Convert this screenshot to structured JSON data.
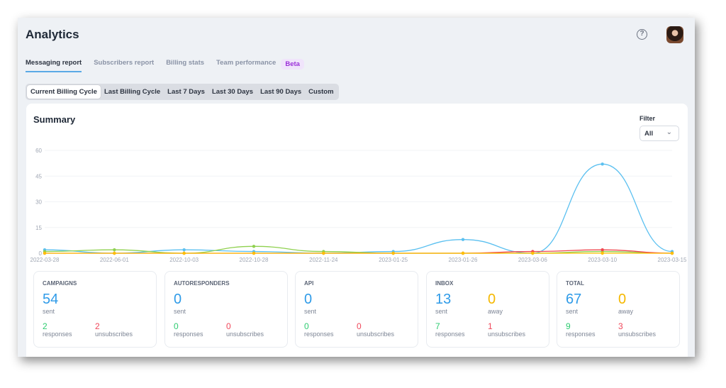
{
  "header": {
    "title": "Analytics",
    "help_icon": "question-circle-icon",
    "avatar": "user-avatar"
  },
  "tabs": [
    {
      "label": "Messaging report",
      "active": true
    },
    {
      "label": "Subscribers report"
    },
    {
      "label": "Billing stats"
    },
    {
      "label": "Team performance",
      "badge": "Beta"
    }
  ],
  "ranges": [
    {
      "label": "Current Billing Cycle",
      "active": true
    },
    {
      "label": "Last Billing Cycle"
    },
    {
      "label": "Last 7 Days"
    },
    {
      "label": "Last 30 Days"
    },
    {
      "label": "Last 90 Days"
    },
    {
      "label": "Custom"
    }
  ],
  "summary": {
    "title": "Summary",
    "filter_label": "Filter",
    "filter_value": "All"
  },
  "chart_data": {
    "type": "line",
    "x": [
      "2022-03-28",
      "2022-06-01",
      "2022-10-03",
      "2022-10-28",
      "2022-11-24",
      "2023-01-25",
      "2023-01-26",
      "2023-03-06",
      "2023-03-10",
      "2023-03-15"
    ],
    "yticks": [
      0,
      15,
      30,
      45,
      60
    ],
    "ylim": [
      0,
      60
    ],
    "grid": true,
    "series": [
      {
        "color": "#5bc0f0",
        "values": [
          2,
          0,
          2,
          1,
          0,
          1,
          8,
          0,
          52,
          1
        ]
      },
      {
        "color": "#8fd14f",
        "values": [
          1,
          2,
          0,
          4,
          1,
          0,
          0,
          0,
          1,
          0
        ]
      },
      {
        "color": "#f0474f",
        "values": [
          0,
          0,
          0,
          0,
          0,
          0,
          0,
          1,
          2,
          0
        ]
      },
      {
        "color": "#ffc000",
        "values": [
          0,
          0,
          0,
          0,
          0,
          0,
          0,
          0,
          0,
          0
        ]
      }
    ]
  },
  "stats": [
    {
      "title": "CAMPAIGNS",
      "sent": "54",
      "sent_label": "sent",
      "a": "2",
      "a_label": "responses",
      "b": "2",
      "b_label": "unsubscribes"
    },
    {
      "title": "AUTORESPONDERS",
      "sent": "0",
      "sent_label": "sent",
      "a": "0",
      "a_label": "responses",
      "b": "0",
      "b_label": "unsubscribes"
    },
    {
      "title": "API",
      "sent": "0",
      "sent_label": "sent",
      "a": "0",
      "a_label": "responses",
      "b": "0",
      "b_label": "unsubscribes"
    },
    {
      "title": "INBOX",
      "sent": "13",
      "sent_label": "sent",
      "away": "0",
      "away_label": "away",
      "a": "7",
      "a_label": "responses",
      "b": "1",
      "b_label": "unsubscribes"
    },
    {
      "title": "TOTAL",
      "sent": "67",
      "sent_label": "sent",
      "away": "0",
      "away_label": "away",
      "a": "9",
      "a_label": "responses",
      "b": "3",
      "b_label": "unsubscribes"
    }
  ],
  "colors": {
    "sent": "#2f9be8",
    "away": "#f5b800",
    "responses": "#2ecc71",
    "unsubscribes": "#f0475a",
    "accent": "#5aa9e6"
  }
}
